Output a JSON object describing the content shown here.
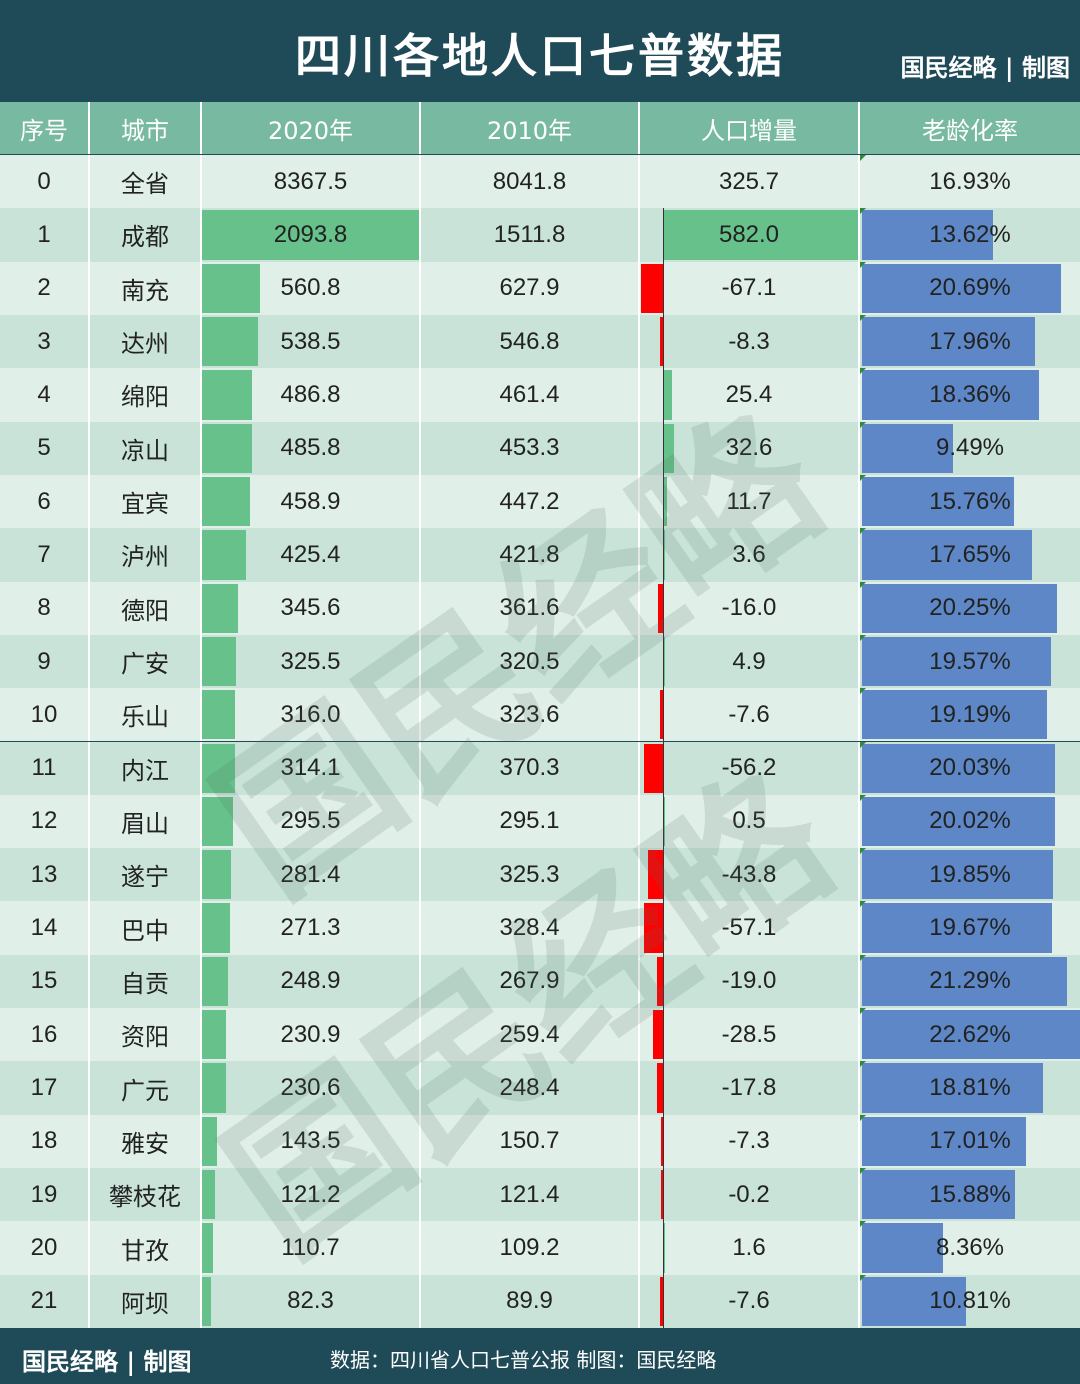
{
  "title": "四川各地人口七普数据",
  "brand": "国民经略 | 制图",
  "watermark_text": "国民经略",
  "footer": {
    "brand": "国民经略 | 制图",
    "source": "数据：四川省人口七普公报   制图：国民经略"
  },
  "colors": {
    "header_bg": "#1f4a57",
    "column_header_bg": "#78b9a1",
    "row_light": "#e0efe8",
    "row_dark": "#c9e3d8",
    "pop_bar": "#66c28a",
    "increase_bar": "#66c28a",
    "decrease_bar": "#ff0000",
    "aging_bar": "#5d87c6"
  },
  "columns": [
    "序号",
    "城市",
    "2020年",
    "2010年",
    "人口增量",
    "老龄化率"
  ],
  "chart_data": {
    "type": "table",
    "rows": [
      {
        "index": "0",
        "city": "全省",
        "pop2020": "8367.5",
        "pop2010": "8041.8",
        "increase": "325.7",
        "aging": "16.93%",
        "v2020": 8367.5,
        "vinc": 325.7,
        "vaging": 16.93
      },
      {
        "index": "1",
        "city": "成都",
        "pop2020": "2093.8",
        "pop2010": "1511.8",
        "increase": "582.0",
        "aging": "13.62%",
        "v2020": 2093.8,
        "vinc": 582.0,
        "vaging": 13.62
      },
      {
        "index": "2",
        "city": "南充",
        "pop2020": "560.8",
        "pop2010": "627.9",
        "increase": "-67.1",
        "aging": "20.69%",
        "v2020": 560.8,
        "vinc": -67.1,
        "vaging": 20.69
      },
      {
        "index": "3",
        "city": "达州",
        "pop2020": "538.5",
        "pop2010": "546.8",
        "increase": "-8.3",
        "aging": "17.96%",
        "v2020": 538.5,
        "vinc": -8.3,
        "vaging": 17.96
      },
      {
        "index": "4",
        "city": "绵阳",
        "pop2020": "486.8",
        "pop2010": "461.4",
        "increase": "25.4",
        "aging": "18.36%",
        "v2020": 486.8,
        "vinc": 25.4,
        "vaging": 18.36
      },
      {
        "index": "5",
        "city": "凉山",
        "pop2020": "485.8",
        "pop2010": "453.3",
        "increase": "32.6",
        "aging": "9.49%",
        "v2020": 485.8,
        "vinc": 32.6,
        "vaging": 9.49
      },
      {
        "index": "6",
        "city": "宜宾",
        "pop2020": "458.9",
        "pop2010": "447.2",
        "increase": "11.7",
        "aging": "15.76%",
        "v2020": 458.9,
        "vinc": 11.7,
        "vaging": 15.76
      },
      {
        "index": "7",
        "city": "泸州",
        "pop2020": "425.4",
        "pop2010": "421.8",
        "increase": "3.6",
        "aging": "17.65%",
        "v2020": 425.4,
        "vinc": 3.6,
        "vaging": 17.65
      },
      {
        "index": "8",
        "city": "德阳",
        "pop2020": "345.6",
        "pop2010": "361.6",
        "increase": "-16.0",
        "aging": "20.25%",
        "v2020": 345.6,
        "vinc": -16.0,
        "vaging": 20.25
      },
      {
        "index": "9",
        "city": "广安",
        "pop2020": "325.5",
        "pop2010": "320.5",
        "increase": "4.9",
        "aging": "19.57%",
        "v2020": 325.5,
        "vinc": 4.9,
        "vaging": 19.57
      },
      {
        "index": "10",
        "city": "乐山",
        "pop2020": "316.0",
        "pop2010": "323.6",
        "increase": "-7.6",
        "aging": "19.19%",
        "v2020": 316.0,
        "vinc": -7.6,
        "vaging": 19.19
      },
      {
        "index": "11",
        "city": "内江",
        "pop2020": "314.1",
        "pop2010": "370.3",
        "increase": "-56.2",
        "aging": "20.03%",
        "v2020": 314.1,
        "vinc": -56.2,
        "vaging": 20.03
      },
      {
        "index": "12",
        "city": "眉山",
        "pop2020": "295.5",
        "pop2010": "295.1",
        "increase": "0.5",
        "aging": "20.02%",
        "v2020": 295.5,
        "vinc": 0.5,
        "vaging": 20.02
      },
      {
        "index": "13",
        "city": "遂宁",
        "pop2020": "281.4",
        "pop2010": "325.3",
        "increase": "-43.8",
        "aging": "19.85%",
        "v2020": 281.4,
        "vinc": -43.8,
        "vaging": 19.85
      },
      {
        "index": "14",
        "city": "巴中",
        "pop2020": "271.3",
        "pop2010": "328.4",
        "increase": "-57.1",
        "aging": "19.67%",
        "v2020": 271.3,
        "vinc": -57.1,
        "vaging": 19.67
      },
      {
        "index": "15",
        "city": "自贡",
        "pop2020": "248.9",
        "pop2010": "267.9",
        "increase": "-19.0",
        "aging": "21.29%",
        "v2020": 248.9,
        "vinc": -19.0,
        "vaging": 21.29
      },
      {
        "index": "16",
        "city": "资阳",
        "pop2020": "230.9",
        "pop2010": "259.4",
        "increase": "-28.5",
        "aging": "22.62%",
        "v2020": 230.9,
        "vinc": -28.5,
        "vaging": 22.62
      },
      {
        "index": "17",
        "city": "广元",
        "pop2020": "230.6",
        "pop2010": "248.4",
        "increase": "-17.8",
        "aging": "18.81%",
        "v2020": 230.6,
        "vinc": -17.8,
        "vaging": 18.81
      },
      {
        "index": "18",
        "city": "雅安",
        "pop2020": "143.5",
        "pop2010": "150.7",
        "increase": "-7.3",
        "aging": "17.01%",
        "v2020": 143.5,
        "vinc": -7.3,
        "vaging": 17.01
      },
      {
        "index": "19",
        "city": "攀枝花",
        "pop2020": "121.2",
        "pop2010": "121.4",
        "increase": "-0.2",
        "aging": "15.88%",
        "v2020": 121.2,
        "vinc": -0.2,
        "vaging": 15.88
      },
      {
        "index": "20",
        "city": "甘孜",
        "pop2020": "110.7",
        "pop2010": "109.2",
        "increase": "1.6",
        "aging": "8.36%",
        "v2020": 110.7,
        "vinc": 1.6,
        "vaging": 8.36
      },
      {
        "index": "21",
        "city": "阿坝",
        "pop2020": "82.3",
        "pop2010": "89.9",
        "increase": "-7.6",
        "aging": "10.81%",
        "v2020": 82.3,
        "vinc": -7.6,
        "vaging": 10.81
      }
    ]
  }
}
